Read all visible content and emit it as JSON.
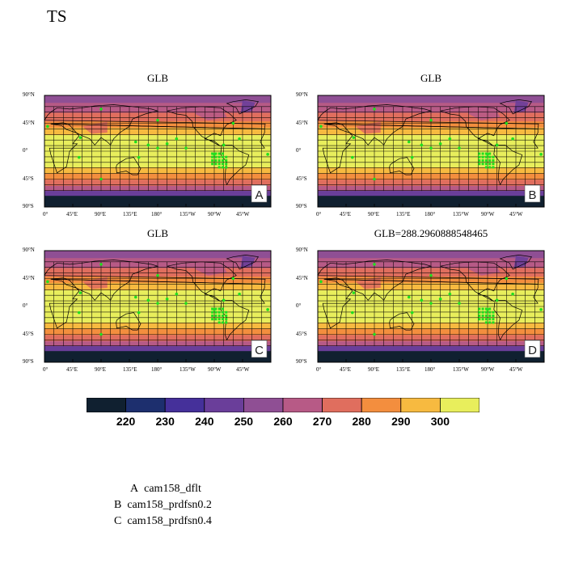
{
  "title": "TS",
  "panels": [
    {
      "id": "A",
      "title": "GLB",
      "letter": "A"
    },
    {
      "id": "B",
      "title": "GLB",
      "letter": "B"
    },
    {
      "id": "C",
      "title": "GLB",
      "letter": "C"
    },
    {
      "id": "D",
      "title": "GLB=288.2960888548465",
      "letter": "D"
    }
  ],
  "lat_ticks": [
    "90°N",
    "45°N",
    "0°",
    "45°S",
    "90°S"
  ],
  "lon_ticks": [
    "0°",
    "45°E",
    "90°E",
    "135°E",
    "180°",
    "135°W",
    "90°W",
    "45°W"
  ],
  "colorbar": {
    "colors": [
      "#102030",
      "#1d2f6e",
      "#45309a",
      "#6a3e9a",
      "#8f4f94",
      "#b75a86",
      "#e06e5e",
      "#f38e3e",
      "#f7ba40",
      "#e8ee5c"
    ],
    "labels": [
      "220",
      "230",
      "240",
      "250",
      "260",
      "270",
      "280",
      "290",
      "300"
    ]
  },
  "legend": [
    {
      "letter": "A",
      "name": "cam158_dflt"
    },
    {
      "letter": "B",
      "name": "cam158_prdfsn0.2"
    },
    {
      "letter": "C",
      "name": "cam158_prdfsn0.4"
    }
  ]
}
